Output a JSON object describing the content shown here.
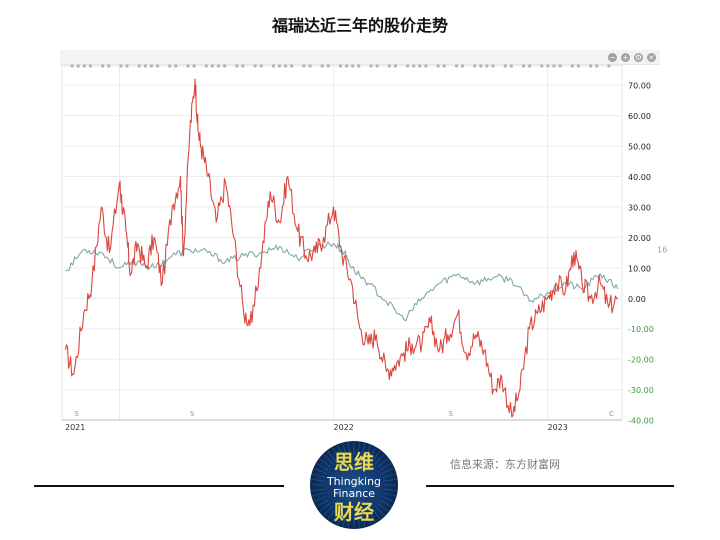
{
  "title": "福瑞达近三年的股价走势",
  "source": "信息来源：东方财富网",
  "logo": {
    "top_text": "思维",
    "en_line1": "Thingking",
    "en_line2": "Finance",
    "bottom_text": "财经"
  },
  "toolbar": {
    "icons": [
      "minus-icon",
      "plus-icon",
      "gear-icon",
      "close-icon"
    ]
  },
  "chart_data": {
    "type": "line",
    "title": "",
    "xlabel": "",
    "ylabel": "",
    "ylim": [
      -40,
      75
    ],
    "y_ticks": [
      "70.00",
      "60.00",
      "50.00",
      "40.00",
      "30.00",
      "20.00",
      "10.00",
      "0.00",
      "-10.00",
      "-20.00",
      "-30.00",
      "-40.00"
    ],
    "x_ticks": [
      "2021",
      "2022",
      "2023"
    ],
    "event_markers": [
      "S",
      "S",
      "S",
      "C"
    ],
    "right_edge_label": "16",
    "colors": {
      "stock": "#d9473f",
      "index": "#7fa9a6",
      "positive_tick": "#222222",
      "negative_tick": "#3a9a3a",
      "marker": "#e07a3a"
    },
    "series": [
      {
        "color": "#d9473f",
        "x": [
          "2020-10-01",
          "2020-10-15",
          "2020-11-01",
          "2020-11-15",
          "2020-12-01",
          "2020-12-15",
          "2021-01-01",
          "2021-01-05",
          "2021-01-12",
          "2021-01-20",
          "2021-02-01",
          "2021-02-15",
          "2021-03-01",
          "2021-03-15",
          "2021-04-01",
          "2021-04-15",
          "2021-04-20",
          "2021-05-01",
          "2021-05-10",
          "2021-05-15",
          "2021-05-20",
          "2021-06-01",
          "2021-06-15",
          "2021-07-01",
          "2021-07-15",
          "2021-08-01",
          "2021-08-15",
          "2021-09-01",
          "2021-09-15",
          "2021-10-01",
          "2021-10-15",
          "2021-11-01",
          "2021-11-15",
          "2021-12-01",
          "2021-12-15",
          "2022-01-01",
          "2022-01-15",
          "2022-02-01",
          "2022-02-15",
          "2022-03-01",
          "2022-03-15",
          "2022-04-01",
          "2022-04-15",
          "2022-05-01",
          "2022-05-15",
          "2022-06-01",
          "2022-06-15",
          "2022-07-01",
          "2022-07-15",
          "2022-08-01",
          "2022-08-15",
          "2022-09-01",
          "2022-09-15",
          "2022-10-01",
          "2022-10-15",
          "2022-11-01",
          "2022-11-15",
          "2022-12-01",
          "2022-12-15",
          "2023-01-01",
          "2023-01-15",
          "2023-02-01",
          "2023-02-15",
          "2023-03-01",
          "2023-03-15",
          "2023-04-01",
          "2023-04-15",
          "2023-05-01"
        ],
        "values": [
          -17,
          -25,
          -5,
          5,
          30,
          15,
          38,
          32,
          22,
          8,
          18,
          10,
          20,
          5,
          30,
          40,
          14,
          55,
          72,
          55,
          50,
          40,
          25,
          38,
          20,
          -5,
          -8,
          15,
          35,
          25,
          40,
          22,
          14,
          15,
          20,
          30,
          15,
          5,
          -10,
          -15,
          -12,
          -24,
          -22,
          -18,
          -15,
          -15,
          -8,
          -17,
          -12,
          -5,
          -18,
          -12,
          -17,
          -30,
          -26,
          -39,
          -30,
          -10,
          -5,
          0,
          5,
          3,
          15,
          5,
          0,
          5,
          -3,
          0
        ],
        "name": ""
      },
      {
        "color": "#7fa9a6",
        "x": [
          "2020-10-01",
          "2020-11-01",
          "2020-12-01",
          "2021-01-01",
          "2021-02-01",
          "2021-03-01",
          "2021-04-01",
          "2021-05-01",
          "2021-06-01",
          "2021-07-01",
          "2021-08-01",
          "2021-09-01",
          "2021-10-01",
          "2021-11-01",
          "2021-12-01",
          "2022-01-01",
          "2022-01-20",
          "2022-02-01",
          "2022-03-01",
          "2022-04-01",
          "2022-05-01",
          "2022-06-01",
          "2022-07-01",
          "2022-08-01",
          "2022-09-01",
          "2022-10-01",
          "2022-11-01",
          "2022-12-01",
          "2023-01-01",
          "2023-02-01",
          "2023-03-01",
          "2023-04-01",
          "2023-05-01"
        ],
        "values": [
          9,
          16,
          15,
          10,
          12,
          10,
          14,
          16,
          15,
          12,
          14,
          15,
          17,
          13,
          17,
          18,
          15,
          10,
          5,
          -1,
          -7,
          0,
          5,
          8,
          5,
          7,
          6,
          -1,
          2,
          5,
          3,
          8,
          3
        ],
        "name": ""
      }
    ],
    "grid": true,
    "legend": "none"
  }
}
